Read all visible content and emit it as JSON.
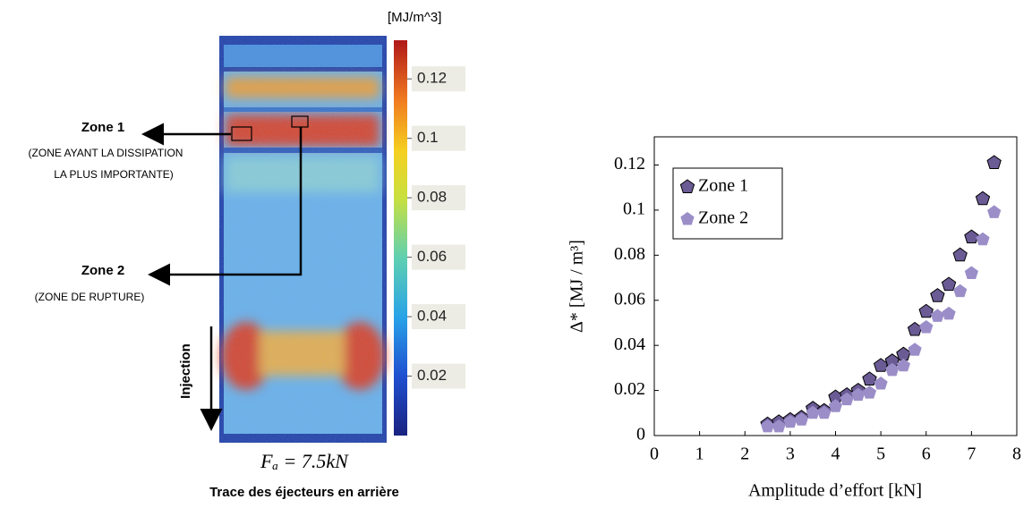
{
  "chart_data": [
    {
      "type": "heatmap",
      "colorbar_label": "[MJ/m^3]",
      "clim": [
        0,
        0.133
      ],
      "colorbar_ticks": [
        0.02,
        0.04,
        0.06,
        0.08,
        0.1,
        0.12
      ],
      "annotations": {
        "zone1": "Zone 1",
        "zone1_note_1": "(ZONE AYANT  LA DISSIPATION",
        "zone1_note_2": "LA PLUS IMPORTANTE)",
        "zone2": "Zone 2",
        "zone2_note": "(ZONE DE RUPTURE)",
        "injection": "Injection",
        "force": "Fₐ = 7.5kN",
        "caption": "Trace des éjecteurs en arrière"
      }
    },
    {
      "type": "scatter",
      "xlabel": "Amplitude d’effort [kN]",
      "ylabel": "Δ* [MJ / m³]",
      "x": [
        2.5,
        2.75,
        3.0,
        3.25,
        3.5,
        3.75,
        4.0,
        4.25,
        4.5,
        4.75,
        5.0,
        5.25,
        5.5,
        5.75,
        6.0,
        6.25,
        6.5,
        6.75,
        7.0,
        7.25,
        7.5
      ],
      "series": [
        {
          "name": "Zone 1",
          "color": "#6b5b95",
          "values": [
            0.005,
            0.006,
            0.007,
            0.008,
            0.012,
            0.011,
            0.017,
            0.018,
            0.02,
            0.025,
            0.031,
            0.033,
            0.036,
            0.047,
            0.055,
            0.062,
            0.067,
            0.08,
            0.088,
            0.105,
            0.121
          ]
        },
        {
          "name": "Zone 2",
          "color": "#9b8ec8",
          "values": [
            0.004,
            0.004,
            0.006,
            0.007,
            0.01,
            0.01,
            0.013,
            0.016,
            0.018,
            0.019,
            0.023,
            0.029,
            0.031,
            0.038,
            0.048,
            0.053,
            0.054,
            0.064,
            0.072,
            0.087,
            0.099
          ]
        }
      ],
      "xlim": [
        0,
        8
      ],
      "xticks": [
        0,
        1,
        2,
        3,
        4,
        5,
        6,
        7,
        8
      ],
      "ylim": [
        0,
        0.1325
      ],
      "yticks": [
        0,
        0.02,
        0.04,
        0.06,
        0.08,
        0.1,
        0.12
      ],
      "legend": "upper-left"
    }
  ]
}
